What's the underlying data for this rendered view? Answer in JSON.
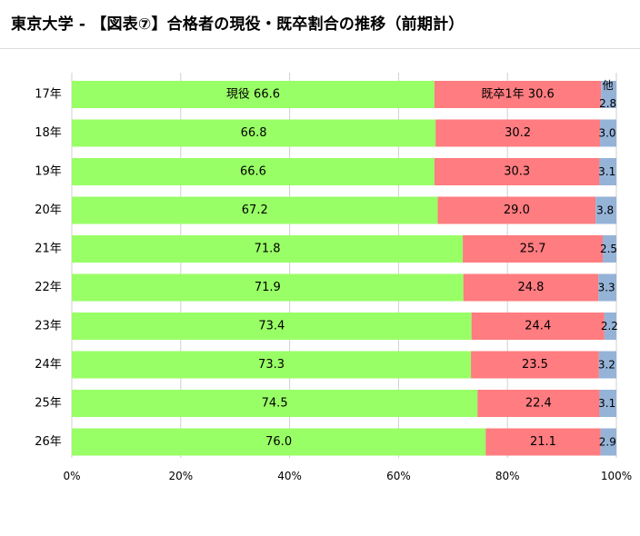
{
  "page": {
    "title": "東京大学 - 【図表⑦】合格者の現役・既卒割合の推移（前期計）"
  },
  "chart_data": {
    "type": "bar",
    "orientation": "horizontal",
    "stacked": true,
    "categories": [
      "17年",
      "18年",
      "19年",
      "20年",
      "21年",
      "22年",
      "23年",
      "24年",
      "25年",
      "26年"
    ],
    "series": [
      {
        "name": "現役",
        "color": "#99ff66",
        "values": [
          66.6,
          66.8,
          66.6,
          67.2,
          71.8,
          71.9,
          73.4,
          73.3,
          74.5,
          76.0
        ]
      },
      {
        "name": "既卒",
        "color": "#ff7c80",
        "values": [
          30.6,
          30.2,
          30.3,
          29.0,
          25.7,
          24.8,
          24.4,
          23.5,
          22.4,
          21.1
        ]
      },
      {
        "name": "他",
        "color": "#95b3d7",
        "values": [
          2.8,
          3.0,
          3.1,
          3.8,
          2.5,
          3.3,
          2.2,
          3.2,
          3.1,
          2.9
        ]
      }
    ],
    "first_row_labels": {
      "genneki": "現役 66.6",
      "kisotsu": "既卒1年 30.6",
      "other_name": "他",
      "other_value": "2.8"
    },
    "data_labels": [
      [
        "",
        "",
        ""
      ],
      [
        "66.8",
        "30.2",
        "3.0"
      ],
      [
        "66.6",
        "30.3",
        "3.1"
      ],
      [
        "67.2",
        "29.0",
        "3.8"
      ],
      [
        "71.8",
        "25.7",
        "2.5"
      ],
      [
        "71.9",
        "24.8",
        "3.3"
      ],
      [
        "73.4",
        "24.4",
        "2.2"
      ],
      [
        "73.3",
        "23.5",
        "3.2"
      ],
      [
        "74.5",
        "22.4",
        "3.1"
      ],
      [
        "76.0",
        "21.1",
        "2.9"
      ]
    ],
    "x_ticks": [
      0,
      20,
      40,
      60,
      80,
      100
    ],
    "x_tick_labels": [
      "0%",
      "20%",
      "40%",
      "60%",
      "80%",
      "100%"
    ],
    "xlim": [
      0,
      100
    ],
    "grid": true,
    "legend": "none"
  }
}
